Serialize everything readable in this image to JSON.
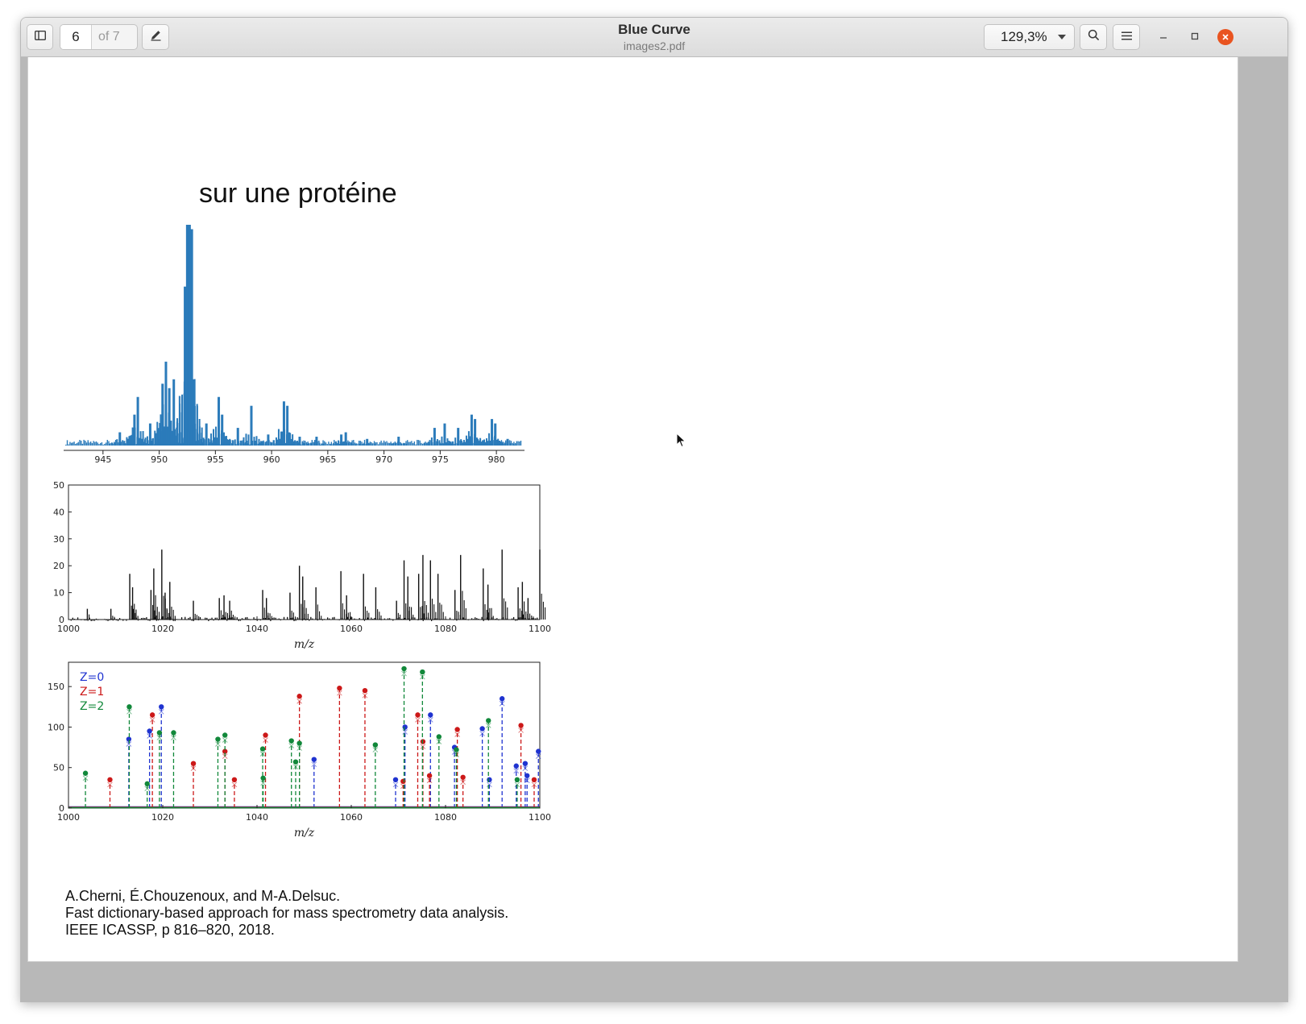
{
  "window": {
    "title": "Blue Curve",
    "subtitle": "images2.pdf"
  },
  "toolbar": {
    "current_page": "6",
    "total_pages_label": "of 7",
    "zoom_label": "129,3%"
  },
  "icons": {
    "sidebar_toggle": "sidebar-icon",
    "annotate": "pencil-icon",
    "zoom_dropdown": "chevron-down-icon",
    "search": "search-icon",
    "menu": "hamburger-menu-icon",
    "minimize": "minimize-icon",
    "maximize": "maximize-icon",
    "close": "close-icon",
    "pointer": "mouse-pointer-icon"
  },
  "colors": {
    "close_button": "#e95420",
    "spectrum_blue": "#2b7bba",
    "z0": "#1f33d0",
    "z1": "#cc1818",
    "z2": "#11883a"
  },
  "slide": {
    "heading": "sur une protéine",
    "reference": {
      "authors": "A.Cherni, É.Chouzenoux, and M-A.Delsuc.",
      "title": "Fast dictionary-based approach for mass spectrometry data analysis.",
      "venue": "IEEE ICASSP, p 816–820, 2018."
    }
  },
  "chart_data": [
    {
      "type": "area",
      "color": "#2b7bba",
      "x_ticks": [
        "945",
        "950",
        "955",
        "960",
        "965",
        "970",
        "975",
        "980"
      ],
      "xlim": [
        941.5,
        982.5
      ],
      "ylim": [
        0,
        100
      ],
      "peaks": [
        {
          "x": 946.5,
          "y": 6
        },
        {
          "x": 947.8,
          "y": 14
        },
        {
          "x": 948.1,
          "y": 22
        },
        {
          "x": 949.2,
          "y": 10
        },
        {
          "x": 950.3,
          "y": 28
        },
        {
          "x": 950.6,
          "y": 38
        },
        {
          "x": 950.9,
          "y": 26
        },
        {
          "x": 951.3,
          "y": 30
        },
        {
          "x": 952.4,
          "y": 72
        },
        {
          "x": 952.6,
          "y": 100
        },
        {
          "x": 952.8,
          "y": 98
        },
        {
          "x": 953.1,
          "y": 30
        },
        {
          "x": 954.2,
          "y": 10
        },
        {
          "x": 955.3,
          "y": 22
        },
        {
          "x": 955.6,
          "y": 14
        },
        {
          "x": 957.0,
          "y": 8
        },
        {
          "x": 958.2,
          "y": 18
        },
        {
          "x": 959.7,
          "y": 5
        },
        {
          "x": 961.1,
          "y": 20
        },
        {
          "x": 961.4,
          "y": 18
        },
        {
          "x": 962.5,
          "y": 4
        },
        {
          "x": 964.0,
          "y": 4
        },
        {
          "x": 966.2,
          "y": 5
        },
        {
          "x": 966.6,
          "y": 6
        },
        {
          "x": 968.5,
          "y": 3
        },
        {
          "x": 971.3,
          "y": 4
        },
        {
          "x": 974.5,
          "y": 8
        },
        {
          "x": 975.4,
          "y": 10
        },
        {
          "x": 976.6,
          "y": 8
        },
        {
          "x": 977.8,
          "y": 14
        },
        {
          "x": 978.1,
          "y": 12
        },
        {
          "x": 979.6,
          "y": 12
        },
        {
          "x": 979.9,
          "y": 10
        },
        {
          "x": 981.0,
          "y": 3
        }
      ]
    },
    {
      "type": "bar",
      "color": "#111111",
      "xlabel": "m/z",
      "xlim": [
        1000,
        1100
      ],
      "ylim": [
        0,
        50
      ],
      "x_ticks": [
        "1000",
        "1020",
        "1040",
        "1060",
        "1080",
        "1100"
      ],
      "y_ticks": [
        "0",
        "10",
        "20",
        "30",
        "40",
        "50"
      ],
      "peaks": [
        {
          "x": 1004,
          "y": 4
        },
        {
          "x": 1009,
          "y": 4
        },
        {
          "x": 1013,
          "y": 17
        },
        {
          "x": 1013.6,
          "y": 12
        },
        {
          "x": 1017.5,
          "y": 11
        },
        {
          "x": 1018.1,
          "y": 19
        },
        {
          "x": 1019.8,
          "y": 26
        },
        {
          "x": 1020.5,
          "y": 10
        },
        {
          "x": 1021.5,
          "y": 14
        },
        {
          "x": 1026.5,
          "y": 7
        },
        {
          "x": 1032,
          "y": 8
        },
        {
          "x": 1033,
          "y": 9
        },
        {
          "x": 1034.2,
          "y": 7
        },
        {
          "x": 1041.2,
          "y": 11
        },
        {
          "x": 1042,
          "y": 8
        },
        {
          "x": 1047,
          "y": 10
        },
        {
          "x": 1049,
          "y": 20
        },
        {
          "x": 1049.7,
          "y": 16
        },
        {
          "x": 1052.5,
          "y": 12
        },
        {
          "x": 1057.8,
          "y": 18
        },
        {
          "x": 1059,
          "y": 9
        },
        {
          "x": 1062.6,
          "y": 17
        },
        {
          "x": 1065.2,
          "y": 12
        },
        {
          "x": 1069.6,
          "y": 7
        },
        {
          "x": 1071.2,
          "y": 22
        },
        {
          "x": 1072,
          "y": 16
        },
        {
          "x": 1074.3,
          "y": 17
        },
        {
          "x": 1075.2,
          "y": 24
        },
        {
          "x": 1076.8,
          "y": 22
        },
        {
          "x": 1078.4,
          "y": 17
        },
        {
          "x": 1082,
          "y": 11
        },
        {
          "x": 1083.2,
          "y": 24
        },
        {
          "x": 1088,
          "y": 19
        },
        {
          "x": 1089,
          "y": 13
        },
        {
          "x": 1092,
          "y": 26
        },
        {
          "x": 1095.4,
          "y": 12
        },
        {
          "x": 1096.3,
          "y": 14
        },
        {
          "x": 1097.5,
          "y": 8
        },
        {
          "x": 1100,
          "y": 26
        }
      ]
    },
    {
      "type": "scatter",
      "subtype": "stem",
      "xlabel": "m/z",
      "xlim": [
        1000,
        1100
      ],
      "ylim": [
        0,
        180
      ],
      "x_ticks": [
        "1000",
        "1020",
        "1040",
        "1060",
        "1080",
        "1100"
      ],
      "y_ticks": [
        "0",
        "50",
        "100",
        "150"
      ],
      "series": [
        {
          "name": "Z=0",
          "color": "#1f33d0",
          "points": [
            [
              1012.8,
              85
            ],
            [
              1017.2,
              95
            ],
            [
              1019.7,
              125
            ],
            [
              1052.1,
              60
            ],
            [
              1069.4,
              35
            ],
            [
              1071.4,
              100
            ],
            [
              1076.8,
              115
            ],
            [
              1081.9,
              75
            ],
            [
              1087.8,
              98
            ],
            [
              1089.3,
              35
            ],
            [
              1092.0,
              135
            ],
            [
              1095.0,
              52
            ],
            [
              1096.9,
              55
            ],
            [
              1097.3,
              40
            ],
            [
              1099.7,
              70
            ]
          ]
        },
        {
          "name": "Z=1",
          "color": "#cc1818",
          "points": [
            [
              1008.8,
              35
            ],
            [
              1017.8,
              115
            ],
            [
              1026.5,
              55
            ],
            [
              1033.2,
              70
            ],
            [
              1035.2,
              35
            ],
            [
              1041.8,
              90
            ],
            [
              1049.0,
              138
            ],
            [
              1057.5,
              148
            ],
            [
              1062.9,
              145
            ],
            [
              1071.0,
              33
            ],
            [
              1074.1,
              115
            ],
            [
              1075.2,
              82
            ],
            [
              1076.6,
              40
            ],
            [
              1082.5,
              97
            ],
            [
              1083.7,
              38
            ],
            [
              1096.0,
              102
            ],
            [
              1098.8,
              35
            ]
          ]
        },
        {
          "name": "Z=2",
          "color": "#11883a",
          "points": [
            [
              1003.6,
              43
            ],
            [
              1012.9,
              125
            ],
            [
              1016.7,
              30
            ],
            [
              1019.3,
              93
            ],
            [
              1022.3,
              93
            ],
            [
              1031.7,
              85
            ],
            [
              1033.2,
              90
            ],
            [
              1041.2,
              73
            ],
            [
              1041.3,
              37
            ],
            [
              1047.3,
              83
            ],
            [
              1048.2,
              57
            ],
            [
              1049.0,
              80
            ],
            [
              1065.1,
              78
            ],
            [
              1071.2,
              172
            ],
            [
              1075.1,
              168
            ],
            [
              1078.6,
              88
            ],
            [
              1082.3,
              72
            ],
            [
              1089.1,
              108
            ],
            [
              1095.2,
              35
            ]
          ]
        }
      ]
    }
  ]
}
